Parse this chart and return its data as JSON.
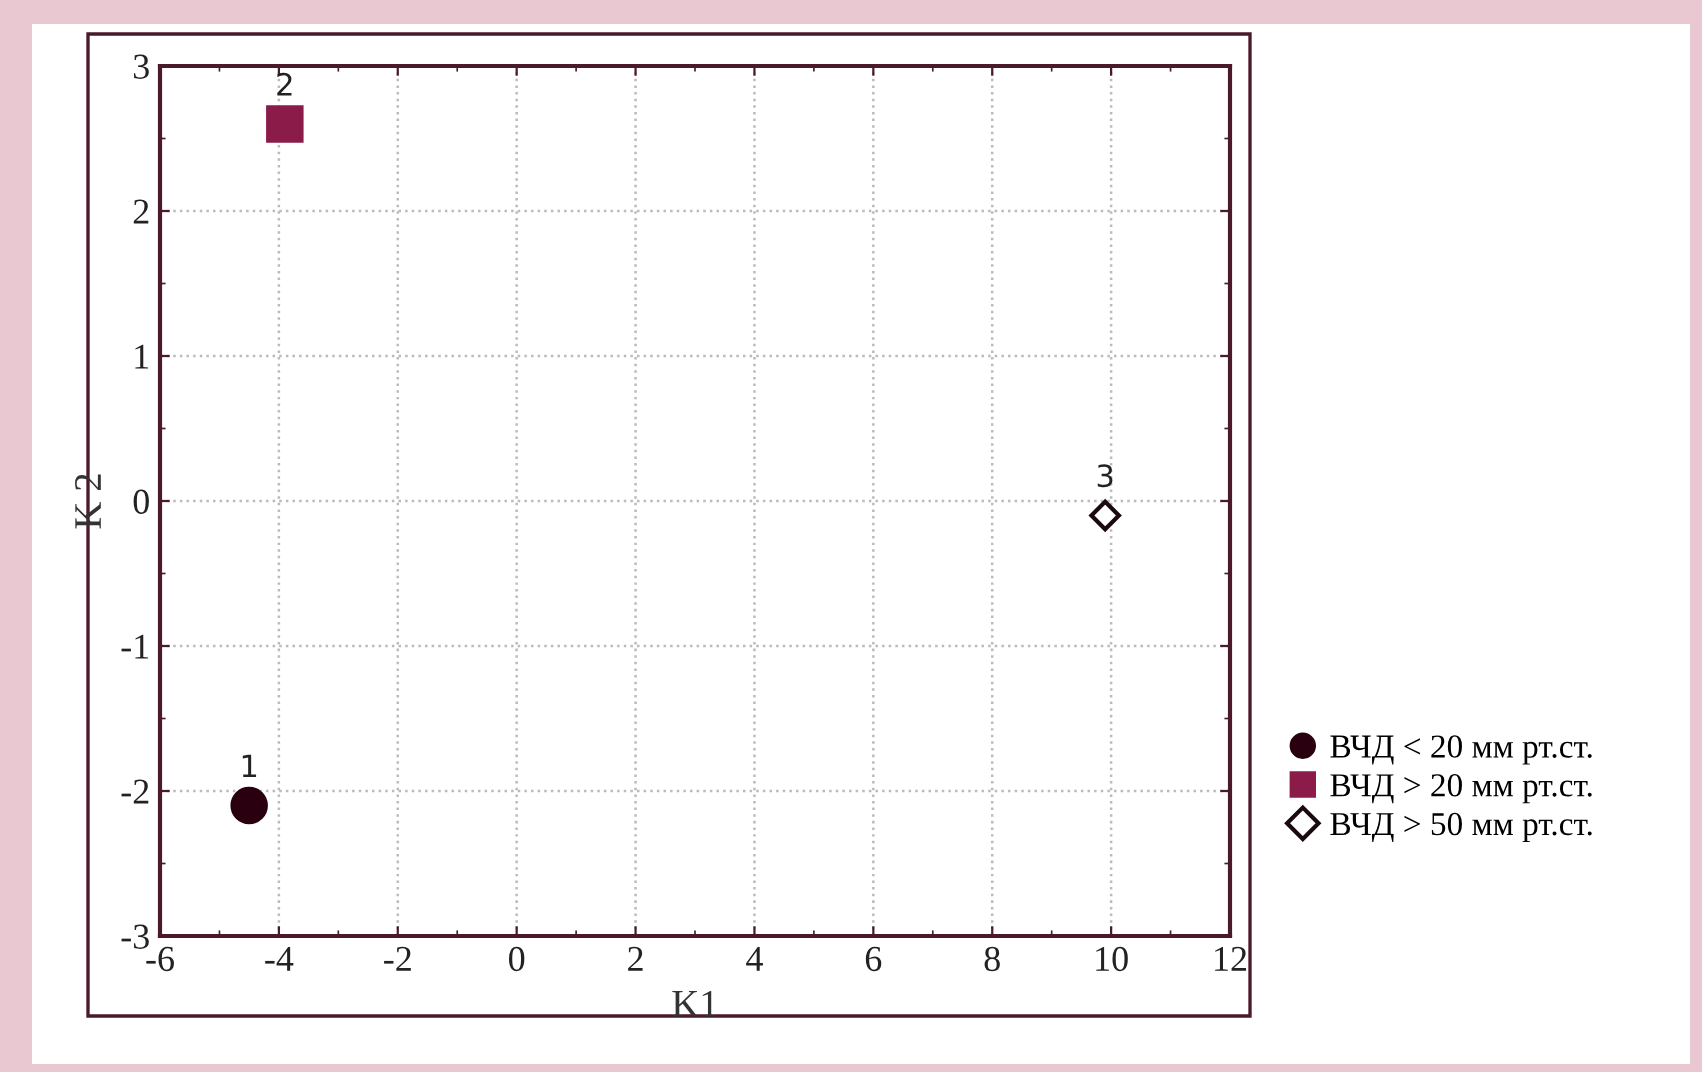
{
  "chart_data": {
    "type": "scatter",
    "xlabel": "K1",
    "ylabel": "K 2",
    "xlim": [
      -6,
      12
    ],
    "xticks": [
      -6,
      -4,
      -2,
      0,
      2,
      4,
      6,
      8,
      10,
      12
    ],
    "ylim": [
      -3,
      3
    ],
    "yticks": [
      -3,
      -2,
      -1,
      0,
      1,
      2,
      3
    ],
    "grid": true,
    "legend": "right",
    "series": [
      {
        "name": "ВЧД < 20 мм рт.ст.",
        "color": "#2a0010",
        "marker": "circle",
        "x": [
          -4.5
        ],
        "values": [
          -2.1
        ]
      },
      {
        "name": "ВЧД > 20 мм рт.ст.",
        "color": "#8b1c4a",
        "marker": "square",
        "x": [
          -3.9
        ],
        "values": [
          2.6
        ]
      },
      {
        "name": "ВЧД > 50 мм рт.ст.",
        "color": "#ffffff",
        "marker": "diamond",
        "x": [
          9.9
        ],
        "values": [
          -0.1
        ]
      }
    ],
    "annotations": [
      {
        "text": "1",
        "x": -4.5,
        "y": -2.1
      },
      {
        "text": "2",
        "x": -3.9,
        "y": 2.6
      },
      {
        "text": "3",
        "x": 9.9,
        "y": -0.1
      }
    ]
  }
}
